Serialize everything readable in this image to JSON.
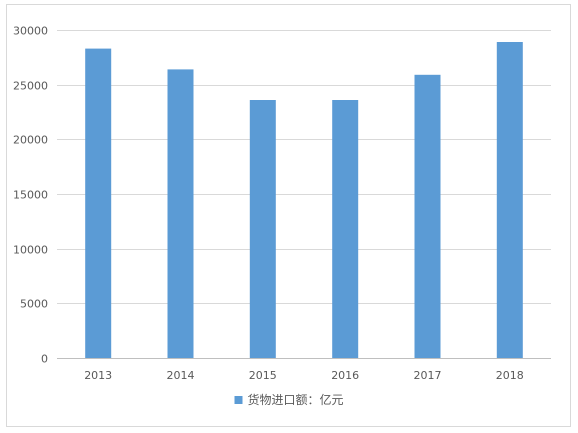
{
  "chart_data": {
    "type": "bar",
    "categories": [
      "2013",
      "2014",
      "2015",
      "2016",
      "2017",
      "2018"
    ],
    "series": [
      {
        "name": "货物进口额：亿元",
        "values": [
          28300,
          26400,
          23600,
          23600,
          25900,
          28900
        ]
      }
    ],
    "ylim": [
      0,
      30000
    ],
    "yticks": [
      0,
      5000,
      10000,
      15000,
      20000,
      25000,
      30000
    ],
    "grid": true,
    "legend_position": "bottom",
    "colors": {
      "bar": "#5b9bd5",
      "grid": "#d9d9d9",
      "axis": "#bfbfbf",
      "text": "#595959"
    }
  }
}
